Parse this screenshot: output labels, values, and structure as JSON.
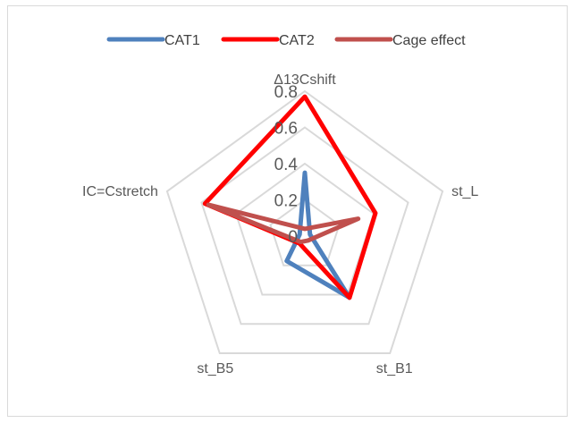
{
  "chart_data": {
    "type": "radar",
    "title": "",
    "axes": [
      "Δ13Cshift",
      "st_L",
      "st_B1",
      "st_B5",
      "IC=Cstretch"
    ],
    "rlim": [
      0,
      0.8
    ],
    "r_ticks": [
      "0",
      "0.2",
      "0.4",
      "0.6",
      "0.8"
    ],
    "grid": true,
    "legend_position": "top",
    "series": [
      {
        "name": "CAT1",
        "color": "#4f81bd",
        "values": [
          0.35,
          0.03,
          0.42,
          0.17,
          0.03
        ]
      },
      {
        "name": "CAT2",
        "color": "#ff0000",
        "values": [
          0.77,
          0.41,
          0.42,
          0.05,
          0.58
        ]
      },
      {
        "name": "Cage effect",
        "color": "#c0504d",
        "values": [
          0.04,
          0.31,
          0.03,
          0.04,
          0.56
        ]
      }
    ]
  }
}
